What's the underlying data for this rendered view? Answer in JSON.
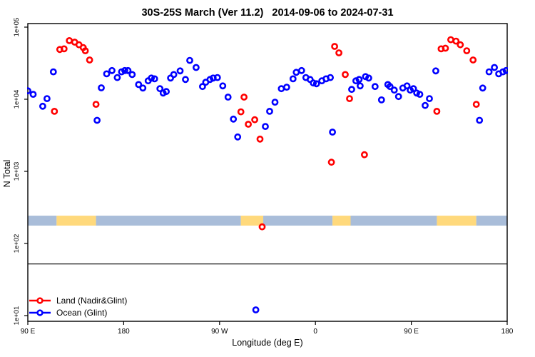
{
  "chart_data": {
    "type": "scatter",
    "title": "30S-25S March (Ver 11.2)   2014-09-06 to 2024-07-31",
    "xlabel": "Longitude (deg E)",
    "ylabel": "N Total",
    "xlim": [
      90,
      540
    ],
    "log_y": true,
    "grid": false,
    "x_ticks": [
      {
        "value": 90,
        "label": "90 E"
      },
      {
        "value": 180,
        "label": "180"
      },
      {
        "value": 270,
        "label": "90 W"
      },
      {
        "value": 360,
        "label": "0"
      },
      {
        "value": 450,
        "label": "90 E"
      },
      {
        "value": 540,
        "label": "180"
      }
    ],
    "y_ticks": [
      {
        "value": 10,
        "label": "1e+01"
      },
      {
        "value": 100,
        "label": "1e+02"
      },
      {
        "value": 1000,
        "label": "1e+03"
      },
      {
        "value": 10000,
        "label": "1e+04"
      },
      {
        "value": 100000,
        "label": "1e+05"
      }
    ],
    "reference_line_y": 52,
    "strip": {
      "description": "land-ocean longitude strip",
      "y_range": [
        177,
        243
      ],
      "land_color": "#ffd97c",
      "ocean_color": "#a9bdd9",
      "segments": [
        {
          "type": "ocean",
          "from": 90,
          "to": 117
        },
        {
          "type": "land",
          "from": 117,
          "to": 154
        },
        {
          "type": "ocean",
          "from": 154,
          "to": 290
        },
        {
          "type": "land",
          "from": 290,
          "to": 311
        },
        {
          "type": "ocean",
          "from": 311,
          "to": 376
        },
        {
          "type": "land",
          "from": 376,
          "to": 393
        },
        {
          "type": "ocean",
          "from": 393,
          "to": 474
        },
        {
          "type": "land",
          "from": 474,
          "to": 511
        },
        {
          "type": "ocean",
          "from": 511,
          "to": 540
        }
      ]
    },
    "legend_position": "bottom-left",
    "series": [
      {
        "name": "Land (Nadir&Glint)",
        "color": "#ff0000",
        "points": [
          [
            115,
            6800
          ],
          [
            120,
            49000
          ],
          [
            124,
            50000
          ],
          [
            129,
            65000
          ],
          [
            134,
            62000
          ],
          [
            138,
            57000
          ],
          [
            142,
            52000
          ],
          [
            144,
            47000
          ],
          [
            148,
            35000
          ],
          [
            154,
            8500
          ],
          [
            290,
            6700
          ],
          [
            293,
            10700
          ],
          [
            297,
            4500
          ],
          [
            303,
            5200
          ],
          [
            308,
            2800
          ],
          [
            310,
            170
          ],
          [
            375,
            1340
          ],
          [
            378,
            54000
          ],
          [
            382,
            44000
          ],
          [
            388,
            22000
          ],
          [
            392,
            10200
          ],
          [
            406,
            1700
          ],
          [
            474,
            6800
          ],
          [
            478,
            50000
          ],
          [
            482,
            51000
          ],
          [
            487,
            67000
          ],
          [
            492,
            64000
          ],
          [
            496,
            57000
          ],
          [
            502,
            47000
          ],
          [
            508,
            35000
          ],
          [
            511,
            8500
          ]
        ]
      },
      {
        "name": "Ocean (Glint)",
        "color": "#0000ff",
        "points": [
          [
            90,
            13100
          ],
          [
            95,
            11700
          ],
          [
            104,
            8000
          ],
          [
            108,
            10200
          ],
          [
            114,
            24000
          ],
          [
            155,
            5100
          ],
          [
            159,
            14400
          ],
          [
            164,
            22500
          ],
          [
            169,
            25000
          ],
          [
            174,
            20000
          ],
          [
            178,
            24000
          ],
          [
            181,
            25000
          ],
          [
            184,
            25000
          ],
          [
            188,
            22000
          ],
          [
            194,
            16000
          ],
          [
            198,
            14300
          ],
          [
            203,
            18000
          ],
          [
            206,
            19700
          ],
          [
            209,
            19200
          ],
          [
            214,
            14000
          ],
          [
            217,
            12200
          ],
          [
            220,
            12800
          ],
          [
            224,
            19700
          ],
          [
            227,
            22000
          ],
          [
            233,
            24700
          ],
          [
            238,
            18800
          ],
          [
            242,
            34600
          ],
          [
            248,
            27600
          ],
          [
            254,
            15000
          ],
          [
            257,
            17200
          ],
          [
            261,
            18800
          ],
          [
            264,
            19700
          ],
          [
            268,
            20000
          ],
          [
            273,
            15300
          ],
          [
            278,
            10700
          ],
          [
            283,
            5300
          ],
          [
            287,
            3000
          ],
          [
            304,
            12
          ],
          [
            313,
            4200
          ],
          [
            317,
            6800
          ],
          [
            322,
            9100
          ],
          [
            328,
            14000
          ],
          [
            333,
            14700
          ],
          [
            339,
            19200
          ],
          [
            342,
            23600
          ],
          [
            347,
            25000
          ],
          [
            351,
            20000
          ],
          [
            355,
            18800
          ],
          [
            358,
            16800
          ],
          [
            361,
            16400
          ],
          [
            366,
            18000
          ],
          [
            370,
            19200
          ],
          [
            374,
            20000
          ],
          [
            376,
            3500
          ],
          [
            394,
            13700
          ],
          [
            398,
            18000
          ],
          [
            401,
            18800
          ],
          [
            402,
            15300
          ],
          [
            407,
            20600
          ],
          [
            410,
            19700
          ],
          [
            416,
            15000
          ],
          [
            422,
            9800
          ],
          [
            428,
            16000
          ],
          [
            430,
            15000
          ],
          [
            434,
            13400
          ],
          [
            438,
            10900
          ],
          [
            442,
            14300
          ],
          [
            446,
            15300
          ],
          [
            449,
            13400
          ],
          [
            452,
            14000
          ],
          [
            455,
            12200
          ],
          [
            458,
            11700
          ],
          [
            463,
            8200
          ],
          [
            467,
            10200
          ],
          [
            473,
            24700
          ],
          [
            514,
            5100
          ],
          [
            517,
            14300
          ],
          [
            523,
            24000
          ],
          [
            528,
            27600
          ],
          [
            532,
            22500
          ],
          [
            536,
            24000
          ],
          [
            539,
            25000
          ]
        ]
      }
    ]
  }
}
